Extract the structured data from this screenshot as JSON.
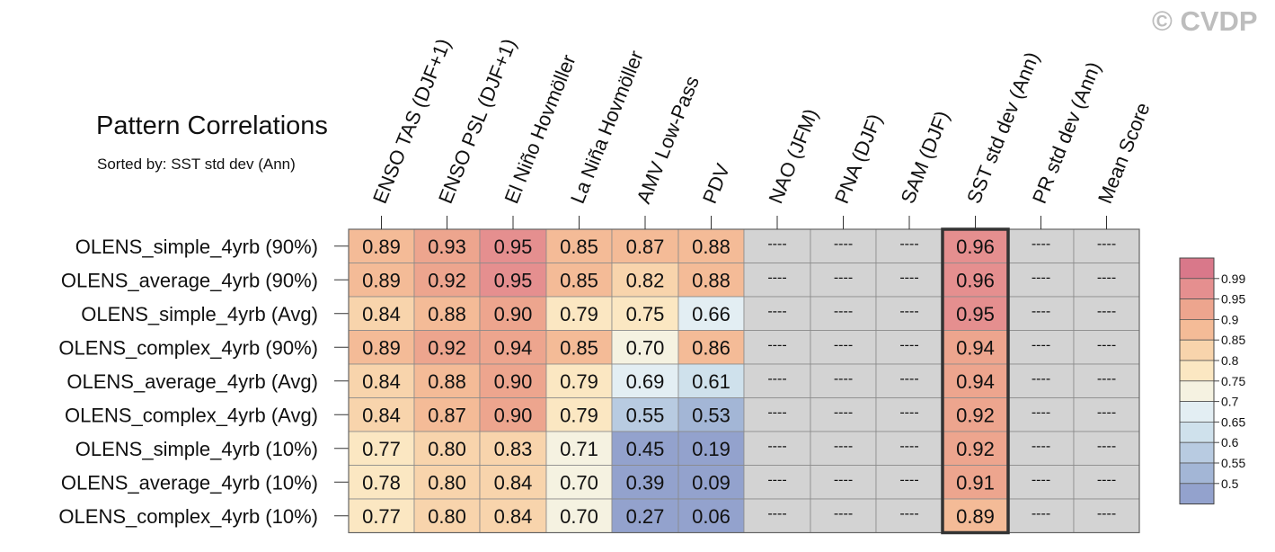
{
  "watermark": "© CVDP",
  "chart_data": {
    "type": "heatmap",
    "title": "Pattern Correlations",
    "subtitle": "Sorted by: SST std dev (Ann)",
    "columns": [
      "ENSO TAS (DJF+1)",
      "ENSO PSL (DJF+1)",
      "El Niño Hovmöller",
      "La Niña Hovmöller",
      "AMV Low-Pass",
      "PDV",
      "NAO (JFM)",
      "PNA (DJF)",
      "SAM (DJF)",
      "SST std dev (Ann)",
      "PR std dev (Ann)",
      "Mean Score"
    ],
    "rows": [
      {
        "name": "OLENS_simple_4yrb (90%)",
        "values": [
          0.89,
          0.93,
          0.95,
          0.85,
          0.87,
          0.88,
          null,
          null,
          null,
          0.96,
          null,
          null
        ]
      },
      {
        "name": "OLENS_average_4yrb (90%)",
        "values": [
          0.89,
          0.92,
          0.95,
          0.85,
          0.82,
          0.88,
          null,
          null,
          null,
          0.96,
          null,
          null
        ]
      },
      {
        "name": "OLENS_simple_4yrb (Avg)",
        "values": [
          0.84,
          0.88,
          0.9,
          0.79,
          0.75,
          0.66,
          null,
          null,
          null,
          0.95,
          null,
          null
        ]
      },
      {
        "name": "OLENS_complex_4yrb (90%)",
        "values": [
          0.89,
          0.92,
          0.94,
          0.85,
          0.7,
          0.86,
          null,
          null,
          null,
          0.94,
          null,
          null
        ]
      },
      {
        "name": "OLENS_average_4yrb (Avg)",
        "values": [
          0.84,
          0.88,
          0.9,
          0.79,
          0.69,
          0.61,
          null,
          null,
          null,
          0.94,
          null,
          null
        ]
      },
      {
        "name": "OLENS_complex_4yrb (Avg)",
        "values": [
          0.84,
          0.87,
          0.9,
          0.79,
          0.55,
          0.53,
          null,
          null,
          null,
          0.92,
          null,
          null
        ]
      },
      {
        "name": "OLENS_simple_4yrb (10%)",
        "values": [
          0.77,
          0.8,
          0.83,
          0.71,
          0.45,
          0.19,
          null,
          null,
          null,
          0.92,
          null,
          null
        ]
      },
      {
        "name": "OLENS_average_4yrb (10%)",
        "values": [
          0.78,
          0.8,
          0.84,
          0.7,
          0.39,
          0.09,
          null,
          null,
          null,
          0.91,
          null,
          null
        ]
      },
      {
        "name": "OLENS_complex_4yrb (10%)",
        "values": [
          0.77,
          0.8,
          0.84,
          0.7,
          0.27,
          0.06,
          null,
          null,
          null,
          0.89,
          null,
          null
        ]
      }
    ],
    "missing_label": "----",
    "missing_color": "#d3d3d3",
    "sorted_by_column": "SST std dev (Ann)",
    "legend": {
      "placement": "right",
      "labels": [
        "0.99",
        "0.95",
        "0.9",
        "0.85",
        "0.8",
        "0.75",
        "0.7",
        "0.65",
        "0.6",
        "0.55",
        "0.5"
      ],
      "colors_top_to_bottom": [
        "#d9788a",
        "#e58f8f",
        "#eda58e",
        "#f4bb97",
        "#f8d4ac",
        "#fbe7c2",
        "#f5f2e1",
        "#e3eef3",
        "#cfe1ec",
        "#b8cbe1",
        "#a3b6d6",
        "#93a2cd"
      ]
    }
  }
}
